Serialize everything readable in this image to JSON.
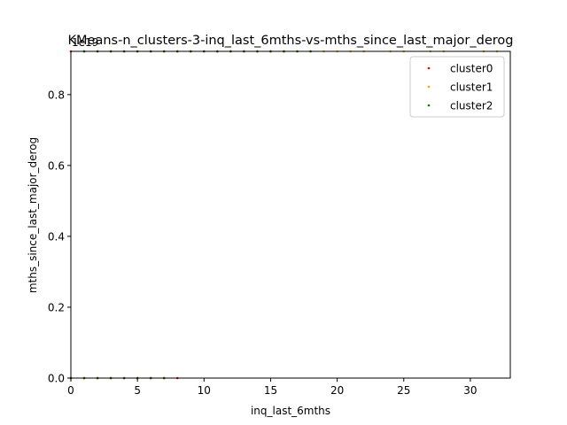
{
  "chart_data": {
    "type": "scatter",
    "title": "KMeans-n_clusters-3-inq_last_6mths-vs-mths_since_last_major_derog",
    "xlabel": "inq_last_6mths",
    "ylabel": "mths_since_last_major_derog",
    "offset_label": "1e19",
    "xlim": [
      0,
      33
    ],
    "ylim": [
      0,
      0.922
    ],
    "xticks": [
      0,
      5,
      10,
      15,
      20,
      25,
      30
    ],
    "yticks": [
      0.0,
      0.2,
      0.4,
      0.6,
      0.8
    ],
    "ytick_labels": [
      "0.0",
      "0.2",
      "0.4",
      "0.6",
      "0.8"
    ],
    "grid": false,
    "legend_position": "top-right",
    "series": [
      {
        "name": "cluster0",
        "color": "#ff0000",
        "points": [
          [
            0,
            0.0
          ],
          [
            1,
            0.0
          ],
          [
            2,
            0.0
          ],
          [
            3,
            0.0
          ],
          [
            4,
            0.0
          ],
          [
            5,
            0.0
          ],
          [
            6,
            0.0
          ],
          [
            7,
            0.0
          ],
          [
            8,
            0.0
          ],
          [
            0,
            0.922
          ],
          [
            1,
            0.922
          ],
          [
            2,
            0.922
          ],
          [
            3,
            0.922
          ],
          [
            4,
            0.922
          ],
          [
            5,
            0.922
          ],
          [
            6,
            0.922
          ],
          [
            7,
            0.922
          ],
          [
            8,
            0.922
          ],
          [
            9,
            0.922
          ],
          [
            10,
            0.922
          ],
          [
            11,
            0.922
          ],
          [
            12,
            0.922
          ],
          [
            13,
            0.922
          ],
          [
            14,
            0.922
          ],
          [
            15,
            0.922
          ],
          [
            16,
            0.922
          ]
        ]
      },
      {
        "name": "cluster1",
        "color": "#ffa500",
        "points": [
          [
            0,
            0.0
          ],
          [
            1,
            0.0
          ],
          [
            2,
            0.0
          ],
          [
            3,
            0.0
          ],
          [
            4,
            0.0
          ],
          [
            5,
            0.0
          ],
          [
            6,
            0.0
          ],
          [
            17,
            0.922
          ],
          [
            18,
            0.922
          ],
          [
            19,
            0.922
          ],
          [
            20,
            0.922
          ],
          [
            21,
            0.922
          ],
          [
            22,
            0.922
          ],
          [
            24,
            0.922
          ],
          [
            25,
            0.922
          ],
          [
            27,
            0.922
          ],
          [
            28,
            0.922
          ],
          [
            31,
            0.922
          ],
          [
            32,
            0.922
          ]
        ]
      },
      {
        "name": "cluster2",
        "color": "#008000",
        "points": [
          [
            0,
            0.0
          ],
          [
            1,
            0.0
          ],
          [
            2,
            0.0
          ],
          [
            3,
            0.0
          ],
          [
            4,
            0.0
          ],
          [
            5,
            0.0
          ],
          [
            6,
            0.0
          ],
          [
            7,
            0.0
          ],
          [
            1,
            0.922
          ],
          [
            2,
            0.922
          ],
          [
            3,
            0.922
          ],
          [
            4,
            0.922
          ],
          [
            5,
            0.922
          ],
          [
            6,
            0.922
          ],
          [
            7,
            0.922
          ],
          [
            8,
            0.922
          ],
          [
            9,
            0.922
          ],
          [
            10,
            0.922
          ],
          [
            11,
            0.922
          ],
          [
            12,
            0.922
          ],
          [
            13,
            0.922
          ],
          [
            14,
            0.922
          ],
          [
            15,
            0.922
          ],
          [
            16,
            0.922
          ],
          [
            17,
            0.922
          ],
          [
            18,
            0.922
          ]
        ]
      }
    ]
  }
}
